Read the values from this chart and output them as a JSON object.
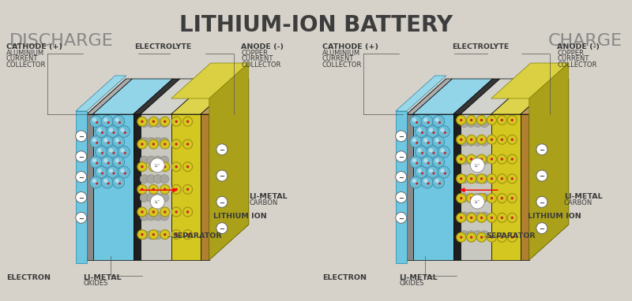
{
  "title": "LITHIUM-ION BATTERY",
  "title_fontsize": 20,
  "title_fontweight": "bold",
  "title_color": "#3d3d3d",
  "bg_color": "#d6d2ca",
  "left_label": "DISCHARGE",
  "right_label": "CHARGE",
  "side_label_fontsize": 16,
  "side_label_color": "#888888",
  "ann_fontsize": 5.8,
  "ann_bold_fontsize": 6.8,
  "ann_color": "#3a3a3a",
  "cathode_blue": "#6ec6e0",
  "cathode_blue_dark": "#4a9ab5",
  "cathode_blue_top": "#8ad4ea",
  "separator_grey": "#c8c8c0",
  "separator_grey_dark": "#a8a8a0",
  "separator_grey_top": "#d8d8d0",
  "dark_carbon": "#1e1e1e",
  "dark_carbon_mid": "#303030",
  "anode_yellow": "#d4c820",
  "anode_yellow_dark": "#b0a010",
  "anode_yellow_top": "#e8dc40",
  "cc_grey": "#909090",
  "cc_grey_dark": "#707070",
  "cc_grey_top": "#b0b0b0",
  "ball_fill": "#6bbdd6",
  "ball_edge": "#3a8aaa",
  "ion_fill": "#d4c820",
  "ion_edge": "#a09010",
  "red_dot": "#cc2020",
  "electron_fill": "white",
  "electron_edge": "#888888"
}
